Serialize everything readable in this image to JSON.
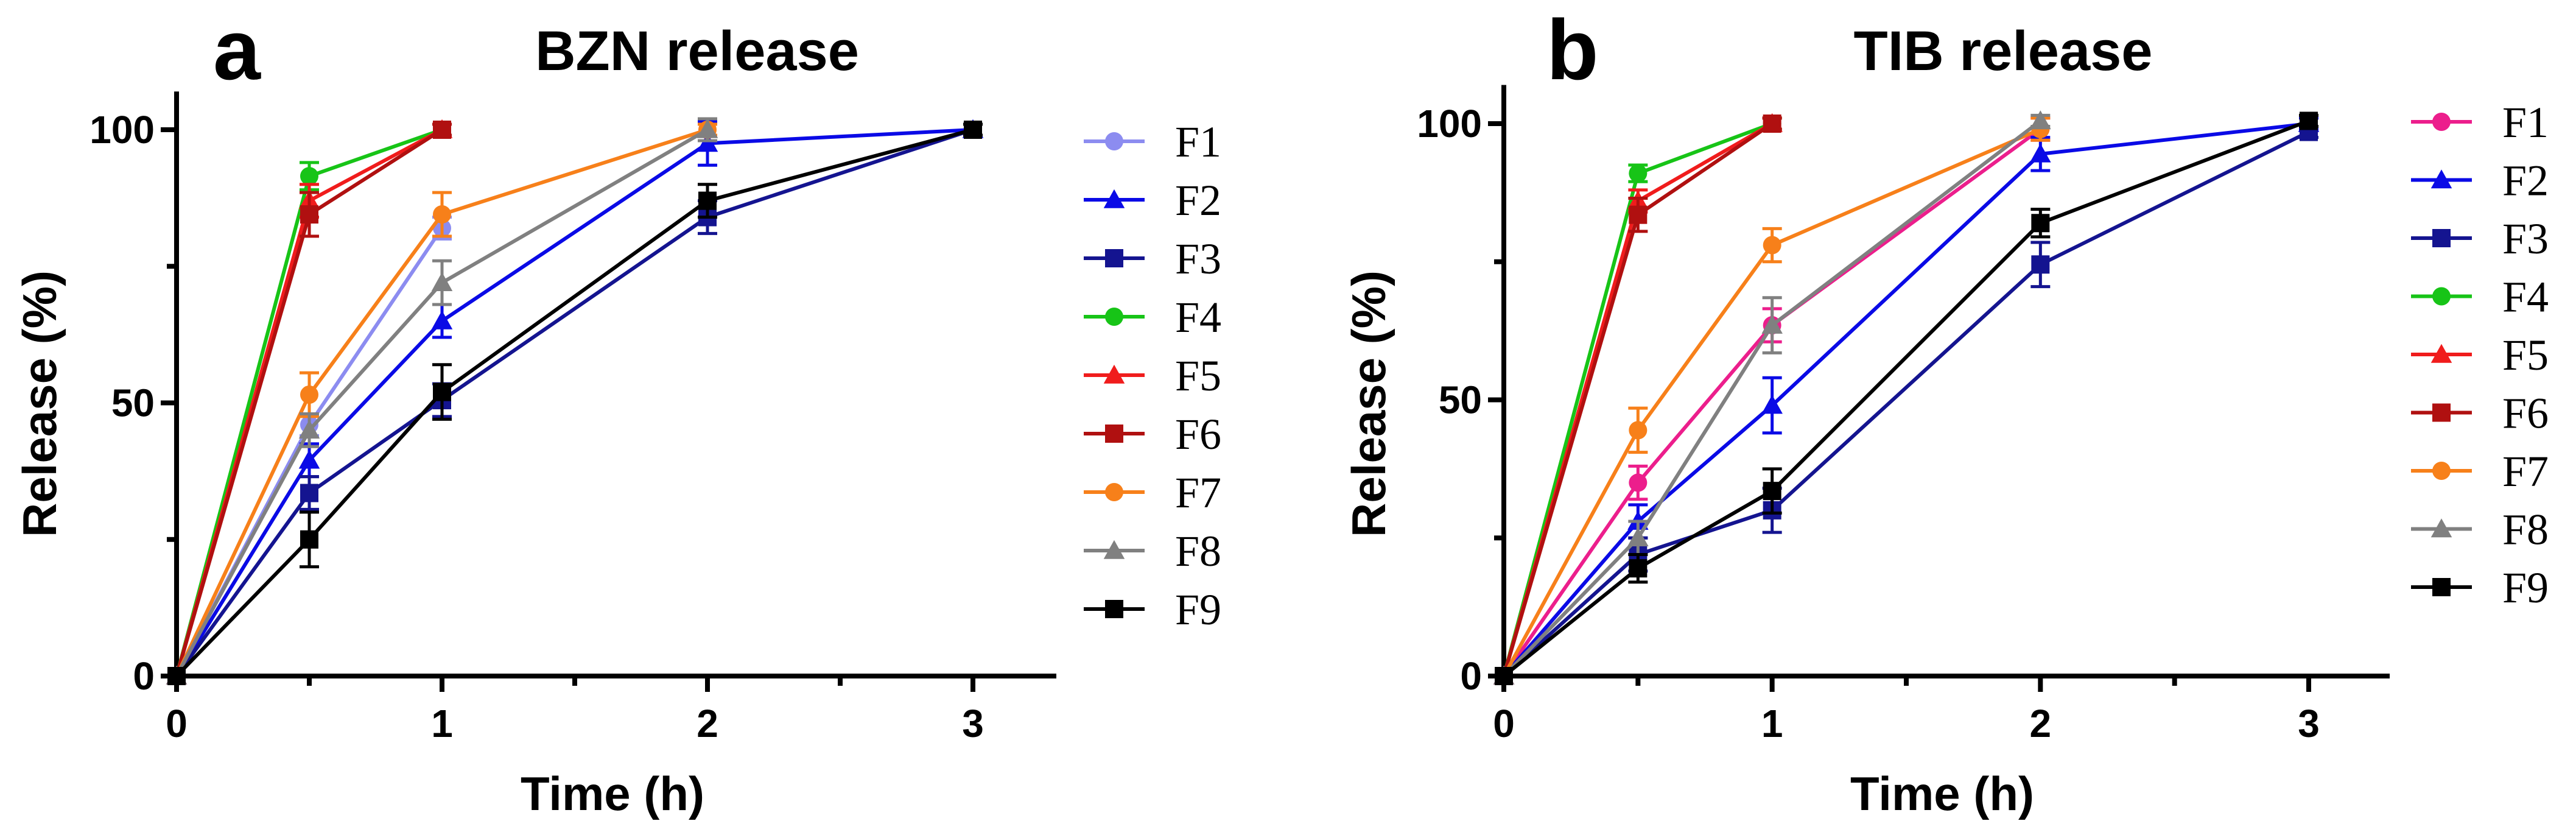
{
  "chart_data": [
    {
      "type": "line",
      "panel_letter": "a",
      "title": "BZN release",
      "xlabel": "Time (h)",
      "ylabel": "Release (%)",
      "xlim": [
        0,
        3.3
      ],
      "ylim": [
        0,
        107
      ],
      "xticks": [
        "0",
        "1",
        "2",
        "3"
      ],
      "yticks": [
        "0",
        "50",
        "100"
      ],
      "legend_position": "right",
      "series": [
        {
          "name": "F1",
          "color": "#8c8cf0",
          "marker": "circle",
          "x": [
            0,
            0.5,
            1
          ],
          "y": [
            0,
            46,
            82
          ],
          "err": [
            0,
            2,
            2
          ]
        },
        {
          "name": "F2",
          "color": "#0a0ae6",
          "marker": "triangle",
          "x": [
            0,
            0.5,
            1,
            2,
            3
          ],
          "y": [
            0,
            39.5,
            65,
            97.5,
            100
          ],
          "err": [
            0,
            3,
            3,
            4,
            1
          ]
        },
        {
          "name": "F3",
          "color": "#141490",
          "marker": "square",
          "x": [
            0,
            0.5,
            1,
            2,
            3
          ],
          "y": [
            0,
            33.5,
            50.5,
            84,
            100
          ],
          "err": [
            0,
            3,
            3,
            3,
            1
          ]
        },
        {
          "name": "F4",
          "color": "#17c417",
          "marker": "circle",
          "x": [
            0,
            0.5,
            1
          ],
          "y": [
            0,
            91.5,
            100
          ],
          "err": [
            0,
            2.5,
            1
          ]
        },
        {
          "name": "F5",
          "color": "#f01c1c",
          "marker": "triangle",
          "x": [
            0,
            0.5,
            1
          ],
          "y": [
            0,
            87,
            100
          ],
          "err": [
            0,
            3,
            1
          ]
        },
        {
          "name": "F6",
          "color": "#b01010",
          "marker": "square",
          "x": [
            0,
            0.5,
            1
          ],
          "y": [
            0,
            84.5,
            100
          ],
          "err": [
            0,
            4,
            1
          ]
        },
        {
          "name": "F7",
          "color": "#f7801a",
          "marker": "circle",
          "x": [
            0,
            0.5,
            1,
            2
          ],
          "y": [
            0,
            51.5,
            84.5,
            100
          ],
          "err": [
            0,
            4,
            4,
            1
          ]
        },
        {
          "name": "F8",
          "color": "#808080",
          "marker": "triangle",
          "x": [
            0,
            0.5,
            1,
            2
          ],
          "y": [
            0,
            45,
            72,
            100
          ],
          "err": [
            0,
            3,
            4,
            2
          ]
        },
        {
          "name": "F9",
          "color": "#000000",
          "marker": "square",
          "x": [
            0,
            0.5,
            1,
            2,
            3
          ],
          "y": [
            0,
            25,
            52,
            87,
            100
          ],
          "err": [
            0,
            5,
            5,
            3,
            1
          ]
        }
      ]
    },
    {
      "type": "line",
      "panel_letter": "b",
      "title": "TIB release",
      "xlabel": "Time (h)",
      "ylabel": "Release (%)",
      "xlim": [
        0,
        3.3
      ],
      "ylim": [
        0,
        107
      ],
      "xticks": [
        "0",
        "1",
        "2",
        "3"
      ],
      "yticks": [
        "0",
        "50",
        "100"
      ],
      "legend_position": "right",
      "series": [
        {
          "name": "F1",
          "color": "#ec1e8c",
          "marker": "circle",
          "x": [
            0,
            0.5,
            1,
            2
          ],
          "y": [
            0,
            35,
            63.5,
            99
          ],
          "err": [
            0,
            3,
            3,
            2
          ]
        },
        {
          "name": "F2",
          "color": "#0a0ae6",
          "marker": "triangle",
          "x": [
            0,
            0.5,
            1,
            2,
            3
          ],
          "y": [
            0,
            28,
            49,
            94.5,
            100
          ],
          "err": [
            0,
            3,
            5,
            3,
            1
          ]
        },
        {
          "name": "F3",
          "color": "#141490",
          "marker": "square",
          "x": [
            0,
            0.5,
            1,
            2,
            3
          ],
          "y": [
            0,
            22,
            30,
            74.5,
            98.5
          ],
          "err": [
            0,
            3,
            4,
            4,
            1
          ]
        },
        {
          "name": "F4",
          "color": "#17c417",
          "marker": "circle",
          "x": [
            0,
            0.5,
            1
          ],
          "y": [
            0,
            91,
            100
          ],
          "err": [
            0,
            1.5,
            1
          ]
        },
        {
          "name": "F5",
          "color": "#f01c1c",
          "marker": "triangle",
          "x": [
            0,
            0.5,
            1
          ],
          "y": [
            0,
            86,
            100
          ],
          "err": [
            0,
            2,
            1
          ]
        },
        {
          "name": "F6",
          "color": "#b01010",
          "marker": "square",
          "x": [
            0,
            0.5,
            1
          ],
          "y": [
            0,
            83.5,
            100
          ],
          "err": [
            0,
            3,
            1
          ]
        },
        {
          "name": "F7",
          "color": "#f7801a",
          "marker": "circle",
          "x": [
            0,
            0.5,
            1,
            2
          ],
          "y": [
            0,
            44.5,
            78,
            99
          ],
          "err": [
            0,
            4,
            3,
            2
          ]
        },
        {
          "name": "F8",
          "color": "#808080",
          "marker": "triangle",
          "x": [
            0,
            0.5,
            1,
            2
          ],
          "y": [
            0,
            25,
            63.5,
            100.5
          ],
          "err": [
            0,
            3,
            5,
            1
          ]
        },
        {
          "name": "F9",
          "color": "#000000",
          "marker": "square",
          "x": [
            0,
            0.5,
            1,
            2,
            3
          ],
          "y": [
            0,
            19.5,
            33.5,
            82,
            100.5
          ],
          "err": [
            0,
            2.5,
            4,
            2.5,
            1
          ]
        }
      ]
    }
  ]
}
